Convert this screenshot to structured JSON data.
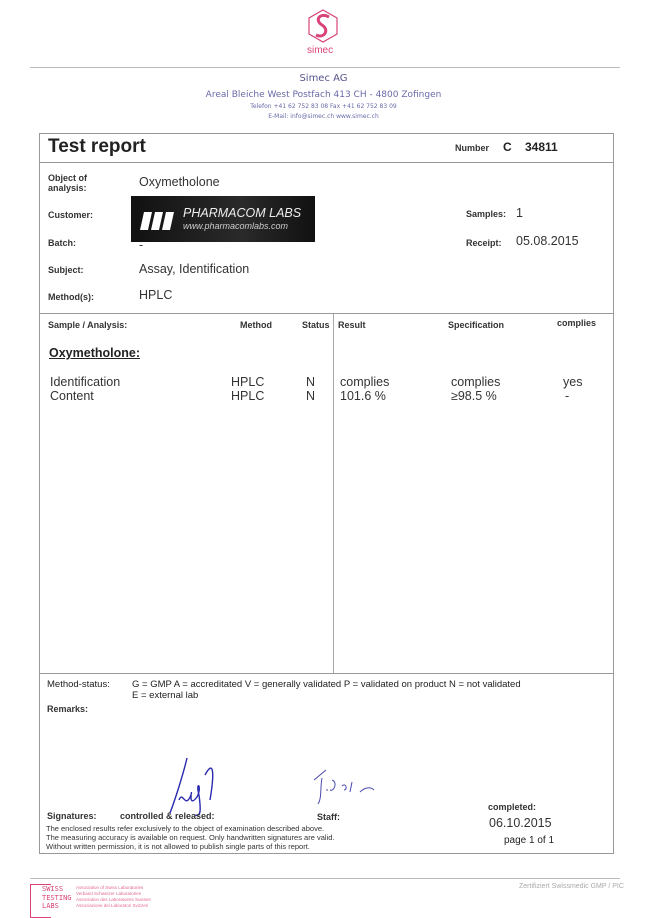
{
  "letterhead": {
    "logo_text": "simec",
    "company": "Simec AG",
    "address": "Areal Bleiche West  Postfach 413  CH - 4800 Zofingen",
    "phone": "Telefon +41 62 752 83 08   Fax +41 62 752 83 09",
    "email": "E-Mail: info@simec.ch   www.simec.ch"
  },
  "report": {
    "title": "Test report",
    "number_label": "Number",
    "number_prefix": "C",
    "number": "34811"
  },
  "info": {
    "object_label": "Object of analysis:",
    "object": "Oxymetholone",
    "customer_label": "Customer:",
    "customer_logo": {
      "name": "PHARMACOM LABS",
      "url": "www.pharmacomlabs.com"
    },
    "batch_label": "Batch:",
    "batch": "-",
    "subject_label": "Subject:",
    "subject": "Assay, Identification",
    "methods_label": "Method(s):",
    "methods": "HPLC",
    "samples_label": "Samples:",
    "samples": "1",
    "receipt_label": "Receipt:",
    "receipt": "05.08.2015"
  },
  "table": {
    "headers": [
      "Sample / Analysis:",
      "Method",
      "Status",
      "Result",
      "Specification",
      "complies"
    ],
    "section": "Oxymetholone:",
    "rows": [
      {
        "analysis": "Identification",
        "method": "HPLC",
        "status": "N",
        "result": "complies",
        "spec": "complies",
        "complies": "yes"
      },
      {
        "analysis": "Content",
        "method": "HPLC",
        "status": "N",
        "result": "101.6 %",
        "spec": "≥98.5 %",
        "complies": "-"
      }
    ]
  },
  "footer": {
    "method_status_label": "Method-status:",
    "method_status_line1": "G = GMP   A = accreditated   V = generally validated   P = validated on product   N = not validated",
    "method_status_line2": "E = external lab",
    "remarks_label": "Remarks:",
    "signatures_label": "Signatures:",
    "controlled_label": "controlled & released:",
    "staff_label": "Staff:",
    "completed_label": "completed:",
    "completed_date": "06.10.2015",
    "page": "page 1 of 1",
    "disclaimer": [
      "The enclosed results refer exclusively to the object of examination described above.",
      "The measuring accuracy is available on request. Only handwritten signatures are valid.",
      "Without written permission, it is not allowed to publish single parts of this report."
    ]
  },
  "bottom": {
    "stl_logo": [
      "SWISS",
      "TESTING",
      "LABS"
    ],
    "stl_text": [
      "Association of Swiss Laboratories",
      "Verband Schweizer Laboratorien",
      "Association des Laboratoires Suisses",
      "Associazione dei Laboratori Svizzeri"
    ],
    "certification": "Zertifiziert Swissmedic GMP / PIC"
  },
  "colors": {
    "brand": "#d9437a",
    "letterhead": "#6a6aa8",
    "signature": "#2a2ab0"
  }
}
